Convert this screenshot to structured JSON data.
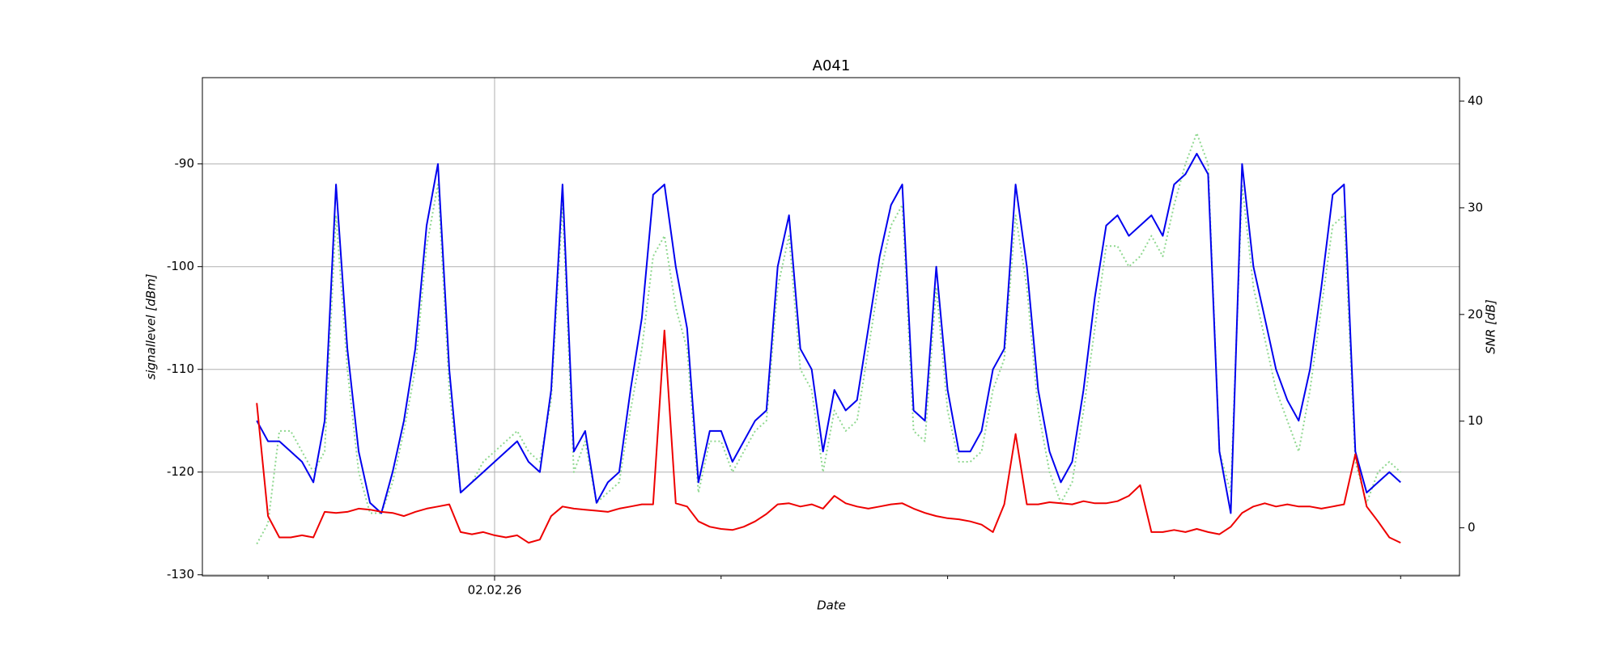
{
  "chart_data": {
    "type": "line",
    "title": "A041",
    "xlabel": "Date",
    "ylabel": "signallevel [dBm]",
    "y2label": "SNR [dB]",
    "x": [
      -0.05,
      0,
      0.05,
      0.1,
      0.15,
      0.2,
      0.25,
      0.3,
      0.35,
      0.4,
      0.45,
      0.5,
      0.55,
      0.6,
      0.65,
      0.7,
      0.75,
      0.8,
      0.85,
      0.9,
      0.95,
      1,
      1.05,
      1.1,
      1.15,
      1.2,
      1.25,
      1.3,
      1.35,
      1.4,
      1.45,
      1.5,
      1.55,
      1.6,
      1.65,
      1.7,
      1.75,
      1.8,
      1.85,
      1.9,
      1.95,
      2,
      2.05,
      2.1,
      2.15,
      2.2,
      2.25,
      2.3,
      2.35,
      2.4,
      2.45,
      2.5,
      2.55,
      2.6,
      2.65,
      2.7,
      2.75,
      2.8,
      2.85,
      2.9,
      2.95,
      3,
      3.05,
      3.1,
      3.15,
      3.2,
      3.25,
      3.3,
      3.35,
      3.4,
      3.45,
      3.5,
      3.55,
      3.6,
      3.65,
      3.7,
      3.75,
      3.8,
      3.85,
      3.9,
      3.95,
      4,
      4.05,
      4.1,
      4.15,
      4.2,
      4.25,
      4.3,
      4.35,
      4.4,
      4.45,
      4.5,
      4.55,
      4.6,
      4.65,
      4.7,
      4.75,
      4.8,
      4.85,
      4.9,
      4.95,
      5
    ],
    "series": [
      {
        "color": "#90d890",
        "linestyle": "dotted",
        "axis": "y",
        "values": [
          -127,
          -125,
          -116,
          -116,
          -118,
          -120,
          -118,
          -95,
          -110,
          -120,
          -124,
          -124,
          -121,
          -116,
          -110,
          -98,
          -92,
          -112,
          -122,
          -121,
          -119,
          -118,
          -117,
          -116,
          -118,
          -119,
          -113,
          -94,
          -120,
          -117,
          -123,
          -122,
          -121,
          -114,
          -108,
          -99,
          -97,
          -104,
          -108,
          -122,
          -117,
          -117,
          -120,
          -118,
          -116,
          -115,
          -102,
          -97,
          -110,
          -112,
          -120,
          -114,
          -116,
          -115,
          -108,
          -101,
          -96,
          -94,
          -116,
          -117,
          -102,
          -114,
          -119,
          -119,
          -118,
          -112,
          -109,
          -95,
          -102,
          -114,
          -120,
          -123,
          -121,
          -114,
          -106,
          -98,
          -98,
          -100,
          -99,
          -97,
          -99,
          -94,
          -90,
          -87,
          -90,
          -118,
          -122,
          -92,
          -102,
          -107,
          -112,
          -115,
          -118,
          -112,
          -104,
          -96,
          -95,
          -119,
          -123,
          -120,
          -119,
          -120
        ]
      },
      {
        "color": "#0000ee",
        "linestyle": "solid",
        "axis": "y",
        "values": [
          -115,
          -117,
          -117,
          -118,
          -119,
          -121,
          -115,
          -92,
          -108,
          -118,
          -123,
          -124,
          -120,
          -115,
          -108,
          -96,
          -90,
          -110,
          -122,
          -121,
          -120,
          -119,
          -118,
          -117,
          -119,
          -120,
          -112,
          -92,
          -118,
          -116,
          -123,
          -121,
          -120,
          -112,
          -105,
          -93,
          -92,
          -100,
          -106,
          -121,
          -116,
          -116,
          -119,
          -117,
          -115,
          -114,
          -100,
          -95,
          -108,
          -110,
          -118,
          -112,
          -114,
          -113,
          -106,
          -99,
          -94,
          -92,
          -114,
          -115,
          -100,
          -112,
          -118,
          -118,
          -116,
          -110,
          -108,
          -92,
          -100,
          -112,
          -118,
          -121,
          -119,
          -112,
          -103,
          -96,
          -95,
          -97,
          -96,
          -95,
          -97,
          -92,
          -91,
          -89,
          -91,
          -118,
          -124,
          -90,
          -100,
          -105,
          -110,
          -113,
          -115,
          -110,
          -102,
          -93,
          -92,
          -118,
          -122,
          -121,
          -120,
          -121
        ]
      },
      {
        "color": "#ee0000",
        "linestyle": "solid",
        "axis": "y2",
        "values": [
          11.7,
          1.1,
          -0.9,
          -0.9,
          -0.7,
          -0.9,
          1.5,
          1.4,
          1.5,
          1.8,
          1.7,
          1.5,
          1.4,
          1.1,
          1.5,
          1.8,
          2.0,
          2.2,
          -0.4,
          -0.6,
          -0.4,
          -0.7,
          -0.9,
          -0.7,
          -1.4,
          -1.1,
          1.1,
          2.0,
          1.8,
          1.7,
          1.6,
          1.5,
          1.8,
          2.0,
          2.2,
          2.2,
          18.5,
          2.3,
          2.0,
          0.6,
          0.1,
          -0.1,
          -0.2,
          0.1,
          0.6,
          1.3,
          2.2,
          2.3,
          2.0,
          2.2,
          1.8,
          3.0,
          2.3,
          2.0,
          1.8,
          2.0,
          2.2,
          2.3,
          1.8,
          1.4,
          1.1,
          0.9,
          0.8,
          0.6,
          0.3,
          -0.4,
          2.2,
          8.8,
          2.2,
          2.2,
          2.4,
          2.3,
          2.2,
          2.5,
          2.3,
          2.3,
          2.5,
          3.0,
          4.0,
          -0.4,
          -0.4,
          -0.2,
          -0.4,
          -0.1,
          -0.4,
          -0.6,
          0.1,
          1.4,
          2.0,
          2.3,
          2.0,
          2.2,
          2.0,
          2.0,
          1.8,
          2.0,
          2.2,
          6.9,
          2.0,
          0.6,
          -0.9,
          -1.4
        ]
      }
    ],
    "xlim": [
      -0.29,
      5.26
    ],
    "xticks": [
      {
        "value": 1,
        "label": "02.02.26"
      }
    ],
    "xminorticks": [
      0,
      2,
      3,
      4,
      5
    ],
    "ylim": [
      -130.1,
      -81.6
    ],
    "yticks": [
      -130,
      -120,
      -110,
      -100,
      -90
    ],
    "y2lim": [
      -4.5,
      42.2
    ],
    "y2ticks": [
      0,
      10,
      20,
      30,
      40
    ],
    "grid": true
  }
}
